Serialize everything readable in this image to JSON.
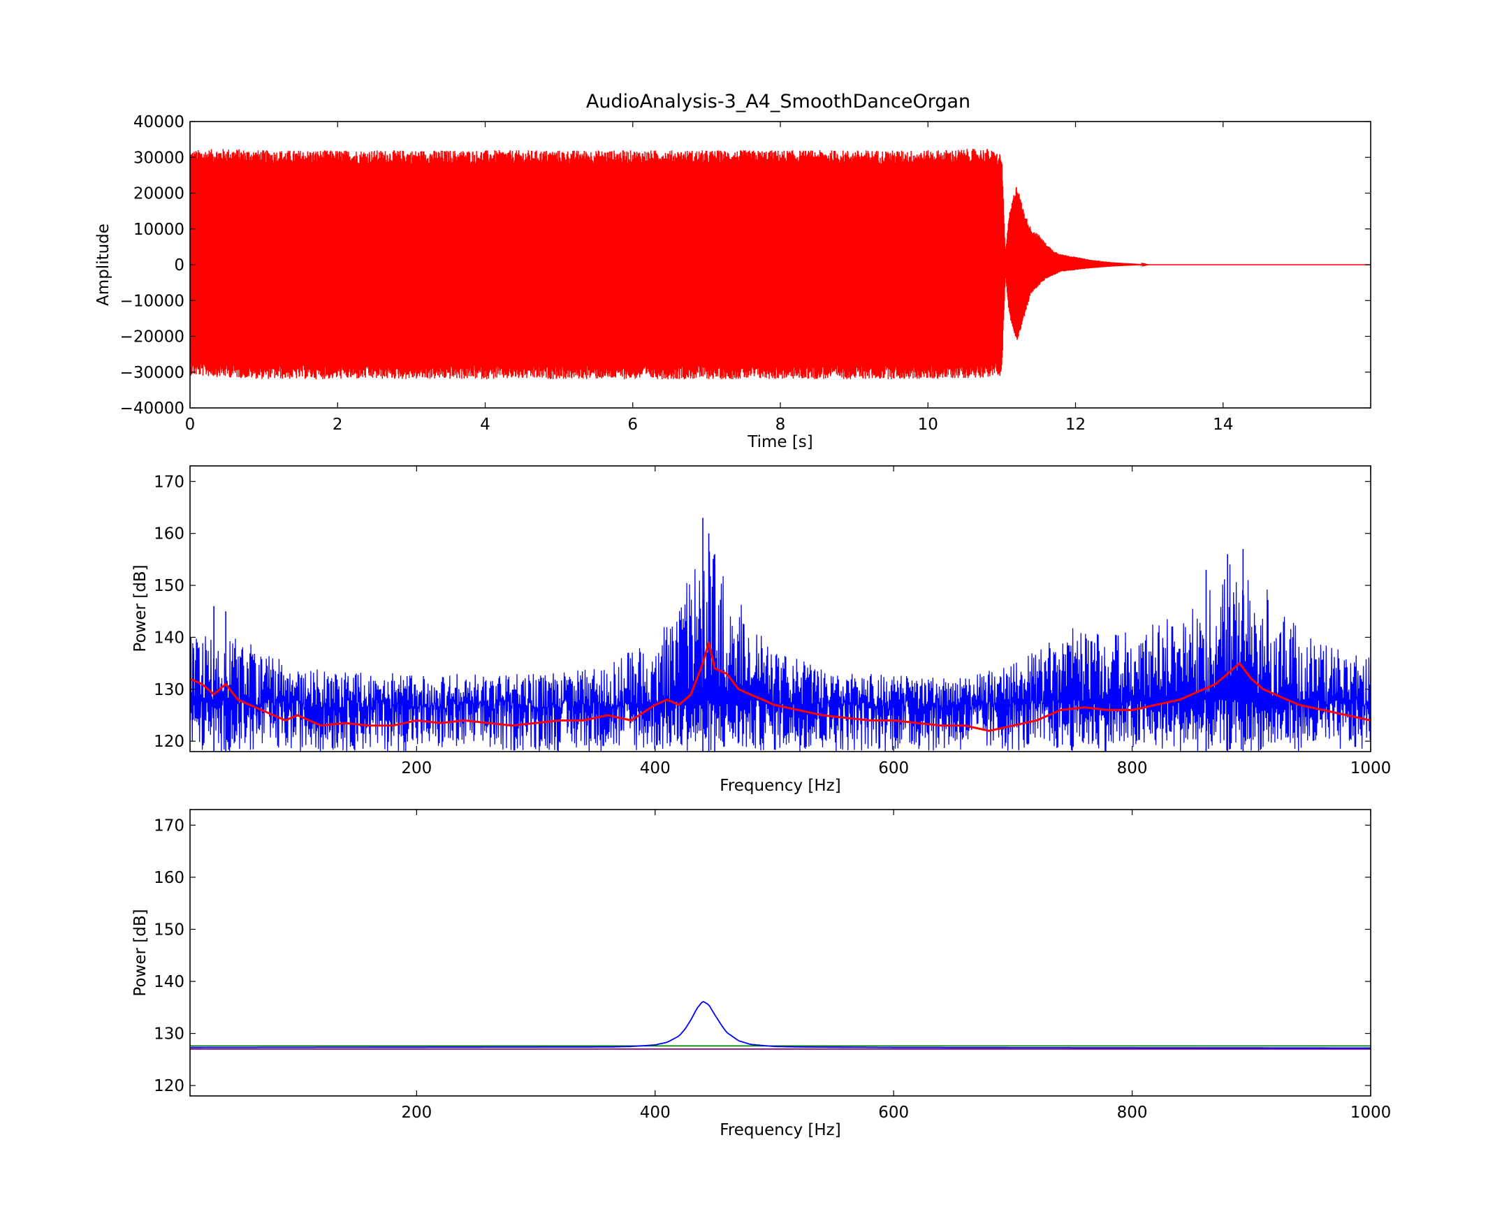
{
  "figure": {
    "title": "AudioAnalysis-3_A4_SmoothDanceOrgan"
  },
  "chart_data": [
    {
      "type": "line",
      "panel": "waveform",
      "title": "AudioAnalysis-3_A4_SmoothDanceOrgan",
      "xlabel": "Time [s]",
      "ylabel": "Amplitude",
      "xlim": [
        0,
        16
      ],
      "ylim": [
        -40000,
        40000
      ],
      "xticks": [
        0,
        2,
        4,
        6,
        8,
        10,
        12,
        14
      ],
      "yticks": [
        40000,
        30000,
        20000,
        10000,
        0,
        -10000,
        -20000,
        -30000,
        -40000
      ],
      "xtick_labels": [
        "0",
        "2",
        "4",
        "6",
        "8",
        "10",
        "12",
        "14"
      ],
      "ytick_labels": [
        "40000",
        "30000",
        "20000",
        "10000",
        "0",
        "−10000",
        "−20000",
        "−30000",
        "−40000"
      ],
      "grid": false,
      "series": [
        {
          "color": "#ff0000",
          "envelope": {
            "t": [
              0,
              0.5,
              1,
              2,
              3,
              4,
              5,
              6,
              7,
              8,
              9,
              10,
              10.8,
              11.0,
              11.05,
              11.1,
              11.2,
              11.3,
              11.4,
              11.5,
              11.6,
              11.7,
              11.8,
              12.0,
              12.2,
              12.5,
              12.8,
              13.0,
              16.0
            ],
            "upper": [
              32000,
              32500,
              32000,
              32000,
              32000,
              32000,
              32000,
              32000,
              32000,
              32000,
              32000,
              32000,
              32500,
              31000,
              3000,
              14000,
              23000,
              15000,
              10000,
              8500,
              6000,
              4000,
              3000,
              2200,
              1400,
              700,
              300,
              0,
              0
            ],
            "lower": [
              -31000,
              -31500,
              -32000,
              -32000,
              -32000,
              -32000,
              -32000,
              -32000,
              -32000,
              -32000,
              -32000,
              -32000,
              -31500,
              -31000,
              -3000,
              -14000,
              -22000,
              -15000,
              -8000,
              -6000,
              -4000,
              -3000,
              -2000,
              -1500,
              -1000,
              -500,
              -200,
              0,
              0
            ]
          }
        }
      ]
    },
    {
      "type": "line",
      "panel": "spectrum",
      "xlabel": "Frequency [Hz]",
      "ylabel": "Power [dB]",
      "xlim": [
        10,
        1000
      ],
      "ylim": [
        118,
        173
      ],
      "xticks": [
        200,
        400,
        600,
        800,
        1000
      ],
      "yticks": [
        120,
        130,
        140,
        150,
        160,
        170
      ],
      "xtick_labels": [
        "200",
        "400",
        "600",
        "800",
        "1000"
      ],
      "ytick_labels": [
        "120",
        "130",
        "140",
        "150",
        "160",
        "170"
      ],
      "grid": false,
      "series": [
        {
          "color": "#0000ff",
          "style": "raw-spectrum",
          "peaks": [
            {
              "x": 440,
              "y": 163
            },
            {
              "x": 445,
              "y": 160
            },
            {
              "x": 450,
              "y": 156
            },
            {
              "x": 880,
              "y": 156
            },
            {
              "x": 893,
              "y": 157
            },
            {
              "x": 862,
              "y": 153
            },
            {
              "x": 30,
              "y": 146
            },
            {
              "x": 40,
              "y": 145
            }
          ],
          "upper_envelope": {
            "x": [
              10,
              50,
              100,
              200,
              300,
              350,
              400,
              420,
              440,
              460,
              480,
              500,
              550,
              600,
              650,
              700,
              750,
              800,
              850,
              880,
              900,
              950,
              1000
            ],
            "y": [
              141,
              140,
              134,
              133,
              133,
              134,
              140,
              146,
              160,
              152,
              145,
              138,
              133,
              133,
              132,
              135,
              142,
              141,
              146,
              155,
              153,
              140,
              136
            ]
          },
          "floor": 118
        },
        {
          "color": "#ff0000",
          "style": "smoothed",
          "x": [
            10,
            20,
            30,
            40,
            50,
            60,
            70,
            80,
            90,
            100,
            120,
            140,
            160,
            180,
            200,
            220,
            240,
            260,
            280,
            300,
            320,
            340,
            360,
            380,
            400,
            410,
            420,
            430,
            440,
            445,
            450,
            460,
            470,
            480,
            490,
            500,
            520,
            540,
            560,
            580,
            600,
            620,
            640,
            660,
            680,
            700,
            720,
            740,
            760,
            780,
            800,
            820,
            840,
            860,
            870,
            880,
            890,
            900,
            910,
            920,
            940,
            960,
            980,
            1000
          ],
          "y": [
            132,
            131,
            129,
            131,
            128,
            127,
            126,
            125,
            124,
            125,
            123,
            123.5,
            123,
            123,
            124,
            123.5,
            124,
            123.5,
            123,
            123.5,
            124,
            124,
            125,
            124,
            127,
            128,
            127,
            129,
            135,
            139,
            134,
            133,
            130,
            129,
            128,
            127,
            126,
            125,
            124.5,
            124,
            124,
            123.5,
            123,
            123,
            122,
            123,
            124,
            126,
            126.5,
            126,
            126,
            127,
            128,
            130,
            131,
            133,
            135,
            132,
            130,
            129,
            127,
            126,
            125,
            124
          ]
        }
      ]
    },
    {
      "type": "line",
      "panel": "model-spectrum",
      "xlabel": "Frequency [Hz]",
      "ylabel": "Power [dB]",
      "xlim": [
        10,
        1000
      ],
      "ylim": [
        118,
        173
      ],
      "xticks": [
        200,
        400,
        600,
        800,
        1000
      ],
      "yticks": [
        120,
        130,
        140,
        150,
        160,
        170
      ],
      "xtick_labels": [
        "200",
        "400",
        "600",
        "800",
        "1000"
      ],
      "ytick_labels": [
        "120",
        "130",
        "140",
        "150",
        "160",
        "170"
      ],
      "grid": false,
      "series": [
        {
          "color": "#008000",
          "x": [
            10,
            1000
          ],
          "y": [
            127.6,
            127.6
          ]
        },
        {
          "color": "#800080",
          "x": [
            10,
            1000
          ],
          "y": [
            127.0,
            127.0
          ]
        },
        {
          "color": "#0000ff",
          "x": [
            10,
            360,
            380,
            400,
            410,
            420,
            425,
            430,
            435,
            440,
            445,
            450,
            455,
            460,
            470,
            480,
            500,
            520,
            600,
            1000
          ],
          "y": [
            127.3,
            127.4,
            127.5,
            127.8,
            128.3,
            129.5,
            130.8,
            132.6,
            134.8,
            136.2,
            135.5,
            133.6,
            131.8,
            130.2,
            128.6,
            127.9,
            127.5,
            127.4,
            127.3,
            127.2
          ]
        }
      ]
    }
  ]
}
